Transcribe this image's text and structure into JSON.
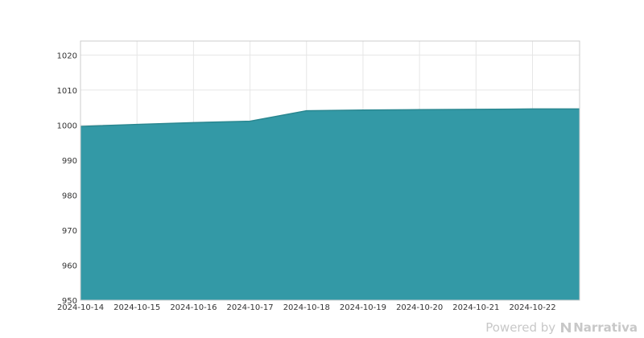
{
  "chart_data": {
    "type": "area",
    "x": [
      "2024-10-14",
      "2024-10-15",
      "2024-10-16",
      "2024-10-17",
      "2024-10-18",
      "2024-10-19",
      "2024-10-20",
      "2024-10-21",
      "2024-10-22",
      "2024-10-22T20:00"
    ],
    "series": [
      {
        "values": [
          999.6,
          1000.2,
          1000.7,
          1001.1,
          1004.1,
          1004.3,
          1004.4,
          1004.5,
          1004.6,
          1004.6
        ]
      }
    ],
    "x_ticks": [
      "2024-10-14",
      "2024-10-15",
      "2024-10-16",
      "2024-10-17",
      "2024-10-18",
      "2024-10-19",
      "2024-10-20",
      "2024-10-21",
      "2024-10-22"
    ],
    "y_ticks": [
      950,
      960,
      970,
      980,
      990,
      1000,
      1010,
      1020
    ],
    "ylim": [
      950,
      1024
    ],
    "xlim": [
      "2024-10-14",
      "2024-10-22T20:00"
    ],
    "grid": true,
    "title": "",
    "xlabel": "",
    "ylabel": "",
    "colors": {
      "fill": "#3399a6",
      "line": "#2a8790",
      "grid": "#e6e6e6",
      "axis": "#cccccc"
    }
  },
  "footer": {
    "powered_by": "Powered by",
    "brand": "Narrativa",
    "logo_icon": "narrativa-logo-icon"
  }
}
